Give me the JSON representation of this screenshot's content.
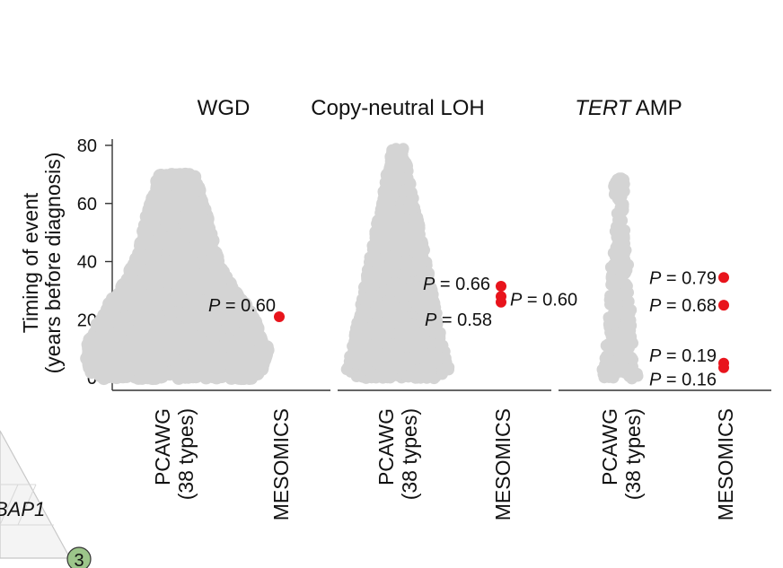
{
  "chart_data": {
    "type": "scatter",
    "ylabel_line1": "Timing of event",
    "ylabel_line2": "(years before diagnosis)",
    "ylim": [
      0,
      80
    ],
    "yticks": [
      0,
      20,
      40,
      60,
      80
    ],
    "grid": false,
    "panels": [
      {
        "title_italic": "",
        "title_rest": "WGD",
        "categories": [
          {
            "line1": "PCAWG",
            "line2": "(38 types)"
          },
          {
            "line1": "MESOMICS",
            "line2": ""
          }
        ],
        "pcawg_profile": [
          [
            0,
            26
          ],
          [
            2,
            30
          ],
          [
            5,
            31
          ],
          [
            8,
            32
          ],
          [
            12,
            31
          ],
          [
            16,
            29
          ],
          [
            20,
            27
          ],
          [
            25,
            24
          ],
          [
            30,
            20
          ],
          [
            35,
            17
          ],
          [
            40,
            15
          ],
          [
            45,
            13
          ],
          [
            50,
            12
          ],
          [
            55,
            11
          ],
          [
            60,
            9
          ],
          [
            65,
            8
          ],
          [
            70,
            6
          ]
        ],
        "mesomics": [
          {
            "y": 21,
            "p_prefix": "P",
            "p_rest": " = 0.60"
          }
        ]
      },
      {
        "title_italic": "",
        "title_rest": "Copy-neutral LOH",
        "categories": [
          {
            "line1": "PCAWG",
            "line2": "(38 types)"
          },
          {
            "line1": "MESOMICS",
            "line2": ""
          }
        ],
        "pcawg_profile": [
          [
            0,
            14
          ],
          [
            3,
            18
          ],
          [
            7,
            17
          ],
          [
            10,
            16
          ],
          [
            15,
            15
          ],
          [
            20,
            14
          ],
          [
            25,
            13
          ],
          [
            30,
            12
          ],
          [
            35,
            11
          ],
          [
            40,
            10
          ],
          [
            45,
            9
          ],
          [
            50,
            8
          ],
          [
            55,
            7
          ],
          [
            60,
            6
          ],
          [
            65,
            5
          ],
          [
            70,
            4
          ],
          [
            75,
            3
          ],
          [
            79,
            2
          ]
        ],
        "mesomics": [
          {
            "y": 31.5,
            "p_prefix": "P",
            "p_rest": " = 0.66"
          },
          {
            "y": 28,
            "p_prefix": "P",
            "p_rest": " = 0.60"
          },
          {
            "y": 26,
            "p_prefix": "P",
            "p_rest": " = 0.58"
          }
        ]
      },
      {
        "title_italic": "TERT",
        "title_rest": " AMP",
        "categories": [
          {
            "line1": "PCAWG",
            "line2": "(38 types)"
          },
          {
            "line1": "MESOMICS",
            "line2": ""
          }
        ],
        "pcawg_profile": [
          [
            0,
            7
          ],
          [
            5,
            5
          ],
          [
            10,
            5
          ],
          [
            15,
            4
          ],
          [
            20,
            4
          ],
          [
            25,
            4
          ],
          [
            30,
            3
          ],
          [
            35,
            3
          ],
          [
            40,
            3
          ],
          [
            45,
            2
          ],
          [
            50,
            2
          ],
          [
            55,
            1
          ],
          [
            65,
            2
          ],
          [
            69,
            2
          ]
        ],
        "mesomics": [
          {
            "y": 34.5,
            "p_prefix": "P",
            "p_rest": " = 0.79"
          },
          {
            "y": 25,
            "p_prefix": "P",
            "p_rest": " = 0.68"
          },
          {
            "y": 5,
            "p_prefix": "P",
            "p_rest": " = 0.19"
          },
          {
            "y": 3.5,
            "p_prefix": "P",
            "p_rest": " = 0.16"
          }
        ]
      }
    ]
  },
  "corner_fragment": {
    "gene_text": "BAP1",
    "badge_number": "3",
    "badge_color": "#9cc58a",
    "triangle_color": "#c8c8c8"
  },
  "colors": {
    "pcawg": "#d4d4d4",
    "mesomics": "#e8141c"
  }
}
